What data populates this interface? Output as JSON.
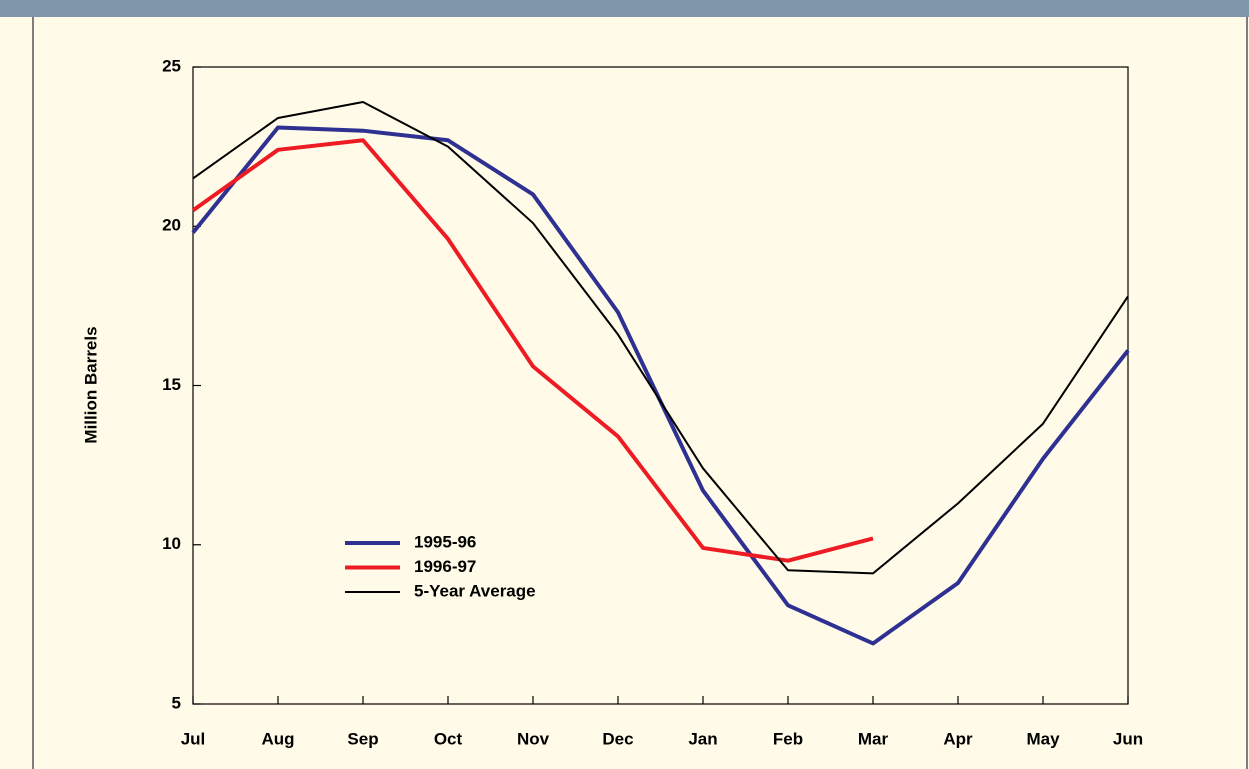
{
  "chart_data": {
    "type": "line",
    "y_label": "Million Barrels",
    "categories": [
      "Jul",
      "Aug",
      "Sep",
      "Oct",
      "Nov",
      "Dec",
      "Jan",
      "Feb",
      "Mar",
      "Apr",
      "May",
      "Jun"
    ],
    "ylim": [
      5,
      25
    ],
    "yticks": [
      5,
      10,
      15,
      20,
      25
    ],
    "grid": false,
    "series": [
      {
        "name": "1995-96",
        "color": "#2e3192",
        "values": [
          19.8,
          23.1,
          23.0,
          22.7,
          21.0,
          17.3,
          11.7,
          8.1,
          6.9,
          8.8,
          12.7,
          16.1
        ]
      },
      {
        "name": "1996-97",
        "color": "#ed1c24",
        "values": [
          20.5,
          22.4,
          22.7,
          19.6,
          15.6,
          13.4,
          9.9,
          9.5,
          10.2,
          null,
          null,
          null
        ]
      },
      {
        "name": "5-Year Average",
        "color": "#000000",
        "values": [
          21.5,
          23.4,
          23.9,
          22.5,
          20.1,
          16.6,
          12.4,
          9.2,
          9.1,
          11.3,
          13.8,
          17.8
        ]
      }
    ]
  }
}
